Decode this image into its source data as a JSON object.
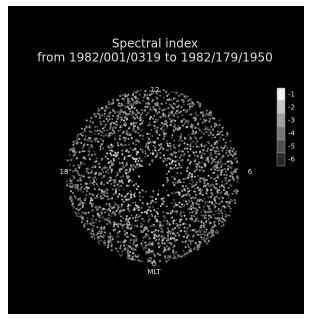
{
  "title": {
    "line1": "Spectral index",
    "line2": "from 1982/001/0319 to 1982/179/1950"
  },
  "colorbar": {
    "labels": [
      "-1",
      "-2",
      "-3",
      "-4",
      "-5",
      "-6"
    ]
  },
  "directions": {
    "top": "12",
    "left": "18",
    "right": "6",
    "bottom": "0",
    "axis": "MLT"
  }
}
